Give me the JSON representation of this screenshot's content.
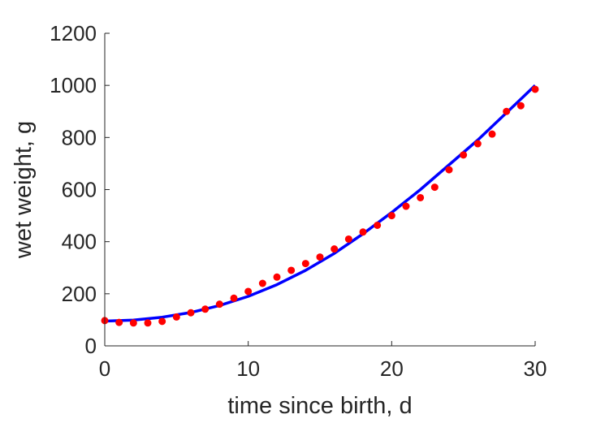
{
  "chart_data": {
    "type": "scatter",
    "title": "",
    "xlabel": "time since birth, d",
    "ylabel": "wet weight, g",
    "xlim": [
      0,
      30
    ],
    "ylim": [
      0,
      1200
    ],
    "xticks": [
      0,
      10,
      20,
      30
    ],
    "yticks": [
      0,
      200,
      400,
      600,
      800,
      1000,
      1200
    ],
    "grid": false,
    "legend": "none",
    "series": [
      {
        "kind": "points",
        "color": "#ff0000",
        "x": [
          0,
          1,
          2,
          3,
          4,
          5,
          6,
          7,
          8,
          9,
          10,
          11,
          12,
          13,
          14,
          15,
          16,
          17,
          18,
          19,
          20,
          21,
          22,
          23,
          24,
          25,
          26,
          27,
          28,
          29,
          30
        ],
        "y": [
          97,
          90,
          88,
          88,
          94,
          111,
          127,
          141,
          160,
          183,
          209,
          240,
          264,
          290,
          316,
          341,
          372,
          410,
          437,
          463,
          500,
          536,
          569,
          609,
          676,
          733,
          776,
          813,
          900,
          922,
          985
        ]
      },
      {
        "kind": "line",
        "color": "#0000ff",
        "x": [
          0,
          2,
          4,
          6,
          8,
          10,
          12,
          14,
          16,
          18,
          20,
          22,
          24,
          26,
          28,
          30
        ],
        "y": [
          95,
          99,
          110,
          128,
          155,
          190,
          235,
          290,
          355,
          430,
          512,
          600,
          695,
          790,
          895,
          1000
        ]
      }
    ]
  }
}
